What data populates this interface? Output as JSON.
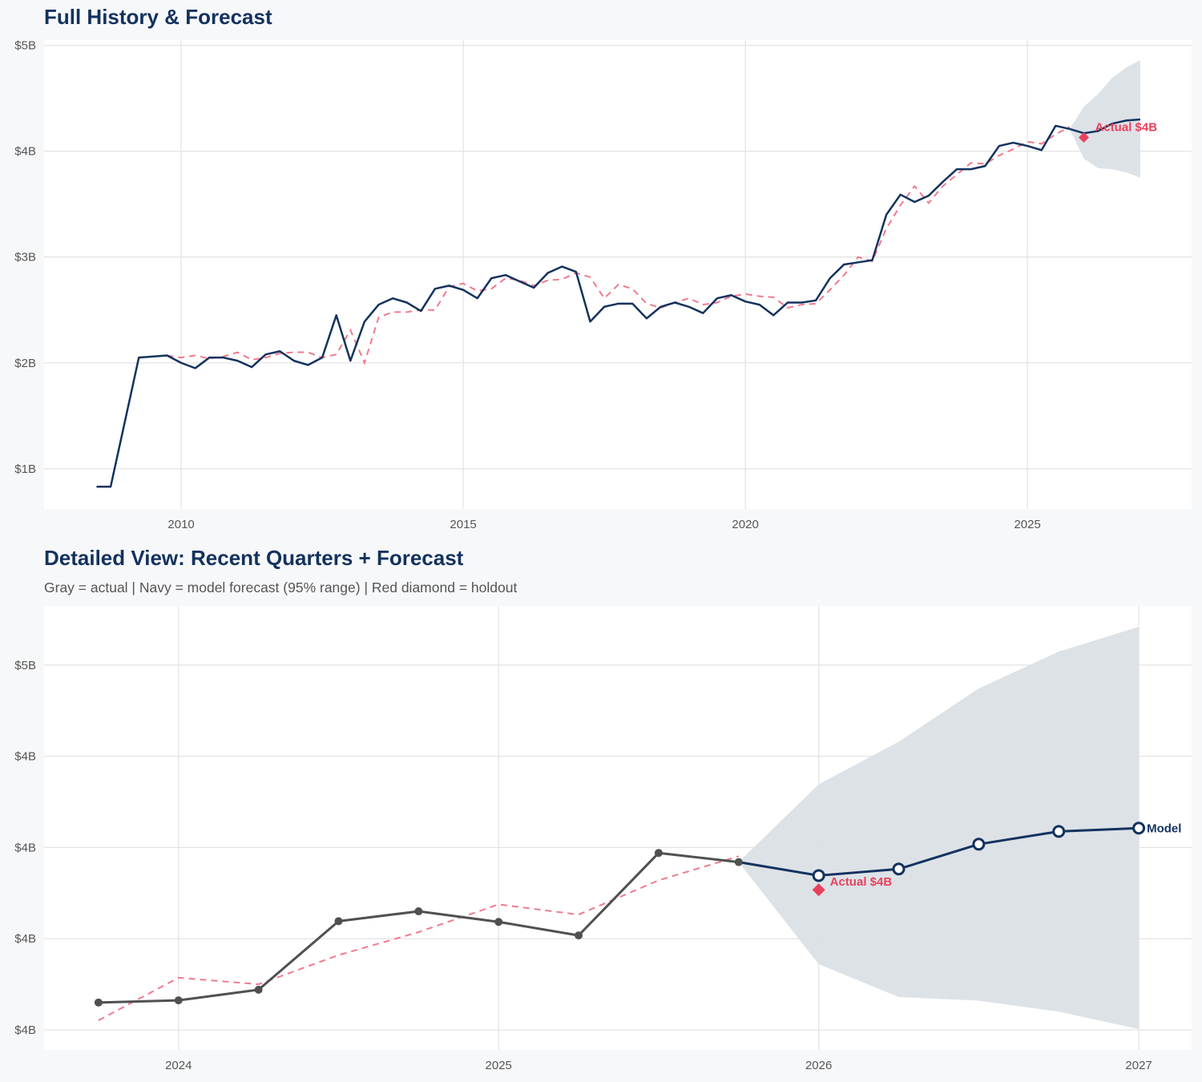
{
  "colors": {
    "navy": "#13325e",
    "holdout_red": "#e8415e",
    "fitted_dashed": "#f07a8e",
    "actual_gray": "#505050",
    "band": "#dbe0e6",
    "grid": "#e4e4e4",
    "panel_bg": "#ffffff",
    "page_bg": "#f7f8fa"
  },
  "chart_data": [
    {
      "type": "line",
      "title": "Full History & Forecast",
      "xlim": [
        2007.57,
        2027.91
      ],
      "ylim": [
        0.62,
        5.05
      ],
      "grid": true,
      "x_ticks": [
        2010,
        2015,
        2020,
        2025
      ],
      "x_tick_labels": [
        "2010",
        "2015",
        "2020",
        "2025"
      ],
      "y_ticks": [
        1,
        2,
        3,
        4,
        5
      ],
      "y_tick_labels": [
        "$1B",
        "$2B",
        "$3B",
        "$4B",
        "$5B"
      ],
      "actual": {
        "x": [
          2008.5,
          2008.75,
          2009.25,
          2009.75,
          2010,
          2010.25,
          2010.5,
          2010.75,
          2011,
          2011.25,
          2011.5,
          2011.75,
          2012,
          2012.25,
          2012.5,
          2012.75,
          2013,
          2013.25,
          2013.5,
          2013.75,
          2014,
          2014.25,
          2014.5,
          2014.75,
          2015,
          2015.25,
          2015.5,
          2015.75,
          2016,
          2016.25,
          2016.5,
          2016.75,
          2017,
          2017.25,
          2017.5,
          2017.75,
          2018,
          2018.25,
          2018.5,
          2018.75,
          2019,
          2019.25,
          2019.5,
          2019.75,
          2020,
          2020.25,
          2020.5,
          2020.75,
          2021,
          2021.25,
          2021.5,
          2021.75,
          2022,
          2022.25,
          2022.5,
          2022.75,
          2023,
          2023.25,
          2023.5,
          2023.75,
          2024,
          2024.25,
          2024.5,
          2024.75,
          2025,
          2025.25,
          2025.5,
          2025.75
        ],
        "y": [
          0.83,
          0.83,
          2.05,
          2.07,
          2.0,
          1.95,
          2.05,
          2.05,
          2.02,
          1.96,
          2.08,
          2.11,
          2.02,
          1.98,
          2.05,
          2.45,
          2.02,
          2.39,
          2.55,
          2.61,
          2.57,
          2.49,
          2.7,
          2.73,
          2.69,
          2.61,
          2.8,
          2.83,
          2.77,
          2.71,
          2.85,
          2.91,
          2.86,
          2.39,
          2.53,
          2.56,
          2.56,
          2.42,
          2.53,
          2.57,
          2.53,
          2.47,
          2.61,
          2.64,
          2.58,
          2.55,
          2.45,
          2.57,
          2.57,
          2.59,
          2.8,
          2.93,
          2.95,
          2.97,
          3.4,
          3.59,
          3.52,
          3.58,
          3.71,
          3.83,
          3.83,
          3.86,
          4.05,
          4.08,
          4.05,
          4.01,
          4.24,
          4.21
        ]
      },
      "fitted": {
        "x": [
          2009.75,
          2010,
          2010.25,
          2010.5,
          2010.75,
          2011,
          2011.25,
          2011.5,
          2011.75,
          2012,
          2012.25,
          2012.5,
          2012.75,
          2013,
          2013.25,
          2013.5,
          2013.75,
          2014,
          2014.25,
          2014.5,
          2014.75,
          2015,
          2015.25,
          2015.5,
          2015.75,
          2016,
          2016.25,
          2016.5,
          2016.75,
          2017,
          2017.25,
          2017.5,
          2017.75,
          2018,
          2018.25,
          2018.5,
          2018.75,
          2019,
          2019.25,
          2019.5,
          2019.75,
          2020,
          2020.25,
          2020.5,
          2020.75,
          2021,
          2021.25,
          2021.5,
          2021.75,
          2022,
          2022.25,
          2022.5,
          2022.75,
          2023,
          2023.25,
          2023.5,
          2023.75,
          2024,
          2024.25,
          2024.5,
          2024.75,
          2025,
          2025.25,
          2025.5,
          2025.75
        ],
        "y": [
          2.07,
          2.05,
          2.07,
          2.04,
          2.06,
          2.1,
          2.03,
          2.05,
          2.09,
          2.1,
          2.1,
          2.05,
          2.08,
          2.31,
          2.0,
          2.43,
          2.48,
          2.48,
          2.5,
          2.5,
          2.72,
          2.75,
          2.68,
          2.7,
          2.8,
          2.78,
          2.73,
          2.78,
          2.79,
          2.85,
          2.81,
          2.61,
          2.74,
          2.7,
          2.56,
          2.52,
          2.57,
          2.61,
          2.55,
          2.57,
          2.63,
          2.65,
          2.63,
          2.62,
          2.52,
          2.55,
          2.56,
          2.69,
          2.83,
          3.0,
          2.96,
          3.27,
          3.49,
          3.67,
          3.51,
          3.67,
          3.78,
          3.89,
          3.88,
          3.96,
          4.02,
          4.09,
          4.07,
          4.16,
          4.23
        ]
      },
      "forecast": {
        "x": [
          2025.75,
          2026,
          2026.25,
          2026.5,
          2026.75,
          2027
        ],
        "y": [
          4.21,
          4.17,
          4.19,
          4.26,
          4.29,
          4.3
        ],
        "upper": [
          4.21,
          4.42,
          4.54,
          4.69,
          4.79,
          4.86
        ],
        "lower": [
          4.21,
          3.93,
          3.84,
          3.83,
          3.8,
          3.75
        ]
      },
      "holdout": {
        "x": 2026,
        "y": 4.13,
        "label": "Actual $4B"
      }
    },
    {
      "type": "line",
      "title": "Detailed View: Recent Quarters + Forecast",
      "subtitle": "Gray = actual  |  Navy = model forecast (95% range)  |  Red diamond = holdout",
      "xlim": [
        2023.58,
        2027.165
      ],
      "ylim": [
        3.695,
        4.91
      ],
      "grid": true,
      "x_ticks": [
        2024,
        2025,
        2026,
        2027
      ],
      "x_tick_labels": [
        "2024",
        "2025",
        "2026",
        "2027"
      ],
      "y_ticks": [
        3.75,
        4.0,
        4.25,
        4.5,
        4.75
      ],
      "y_tick_labels": [
        "$4B",
        "$4B",
        "$4B",
        "$4B",
        "$5B"
      ],
      "actual": {
        "x": [
          2023.75,
          2024,
          2024.25,
          2024.5,
          2024.75,
          2025,
          2025.25,
          2025.5,
          2025.75
        ],
        "y": [
          3.825,
          3.831,
          3.86,
          4.048,
          4.075,
          4.046,
          4.009,
          4.235,
          4.21
        ]
      },
      "fitted": {
        "x": [
          2023.75,
          2024,
          2024.25,
          2024.5,
          2024.75,
          2025,
          2025.25,
          2025.5,
          2025.75
        ],
        "y": [
          3.776,
          3.893,
          3.875,
          3.955,
          4.018,
          4.094,
          4.066,
          4.16,
          4.226
        ]
      },
      "forecast": {
        "x": [
          2025.75,
          2026,
          2026.25,
          2026.5,
          2026.75,
          2027
        ],
        "y": [
          4.21,
          4.173,
          4.191,
          4.259,
          4.294,
          4.303
        ],
        "upper": [
          4.21,
          4.423,
          4.54,
          4.686,
          4.787,
          4.855
        ],
        "lower": [
          4.21,
          3.93,
          3.84,
          3.83,
          3.8,
          3.752
        ]
      },
      "holdout": {
        "x": 2026,
        "y": 4.134,
        "label": "Actual $4B"
      },
      "forecast_label": "Model"
    }
  ]
}
